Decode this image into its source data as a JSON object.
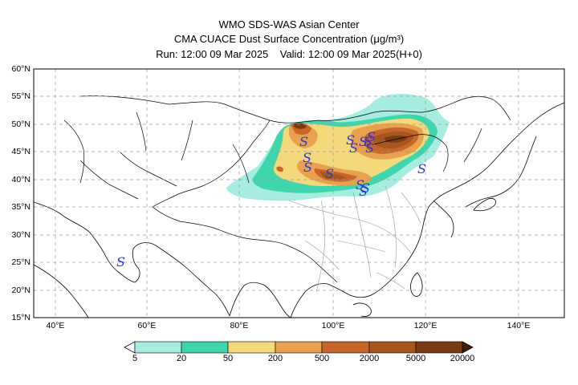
{
  "header": {
    "line1": "WMO SDS-WAS Asian Center",
    "line2": "CMA CUACE Dust Surface Concentration (μg/m³)",
    "line3": "Run: 12:00 09 Mar 2025    Valid: 12:00 09 Mar 2025(H+0)"
  },
  "axes": {
    "lat_labels": [
      "60°N",
      "55°N",
      "50°N",
      "45°N",
      "40°N",
      "35°N",
      "30°N",
      "25°N",
      "20°N",
      "15°N"
    ],
    "lon_labels": [
      "40°E",
      "60°E",
      "80°E",
      "100°E",
      "120°E",
      "140°E"
    ]
  },
  "colorbar": {
    "labels": [
      "5",
      "20",
      "50",
      "200",
      "500",
      "2000",
      "5000",
      "20000"
    ],
    "colors": [
      "#a6ece0",
      "#3fd6ae",
      "#f4d97c",
      "#e8a14c",
      "#c8662a",
      "#a8561f",
      "#7a3a12",
      "#3c1e0a"
    ]
  },
  "dust_symbol": "S",
  "colors": {
    "symbol": "#2c34d8",
    "coast": "#000000",
    "province": "#9a9a9a",
    "grid": "#9a9a9a"
  }
}
